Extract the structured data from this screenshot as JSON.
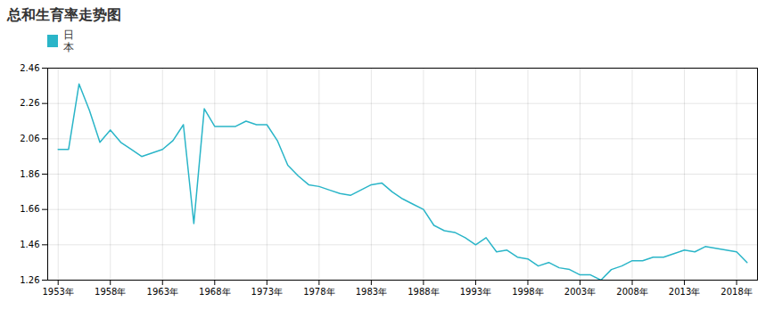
{
  "chart_data": {
    "type": "line",
    "title": "总和生育率走势图",
    "x": [
      1953,
      1954,
      1955,
      1956,
      1957,
      1958,
      1959,
      1960,
      1961,
      1962,
      1963,
      1964,
      1965,
      1966,
      1967,
      1968,
      1969,
      1970,
      1971,
      1972,
      1973,
      1974,
      1975,
      1976,
      1977,
      1978,
      1979,
      1980,
      1981,
      1982,
      1983,
      1984,
      1985,
      1986,
      1987,
      1988,
      1989,
      1990,
      1991,
      1992,
      1993,
      1994,
      1995,
      1996,
      1997,
      1998,
      1999,
      2000,
      2001,
      2002,
      2003,
      2004,
      2005,
      2006,
      2007,
      2008,
      2009,
      2010,
      2011,
      2012,
      2013,
      2014,
      2015,
      2016,
      2017,
      2018,
      2019
    ],
    "series": [
      {
        "name": "日\n本",
        "color": "#2ab5c8",
        "values": [
          2.0,
          2.0,
          2.37,
          2.22,
          2.04,
          2.11,
          2.04,
          2.0,
          1.96,
          1.98,
          2.0,
          2.05,
          2.14,
          1.58,
          2.23,
          2.13,
          2.13,
          2.13,
          2.16,
          2.14,
          2.14,
          2.05,
          1.91,
          1.85,
          1.8,
          1.79,
          1.77,
          1.75,
          1.74,
          1.77,
          1.8,
          1.81,
          1.76,
          1.72,
          1.69,
          1.66,
          1.57,
          1.54,
          1.53,
          1.5,
          1.46,
          1.5,
          1.42,
          1.43,
          1.39,
          1.38,
          1.34,
          1.36,
          1.33,
          1.32,
          1.29,
          1.29,
          1.26,
          1.32,
          1.34,
          1.37,
          1.37,
          1.39,
          1.39,
          1.41,
          1.43,
          1.42,
          1.45,
          1.44,
          1.43,
          1.42,
          1.36
        ]
      }
    ],
    "xlim": [
      1952,
      2020
    ],
    "xticks": [
      {
        "value": 1953,
        "label": "1953年"
      },
      {
        "value": 1958,
        "label": "1958年"
      },
      {
        "value": 1963,
        "label": "1963年"
      },
      {
        "value": 1968,
        "label": "1968年"
      },
      {
        "value": 1973,
        "label": "1973年"
      },
      {
        "value": 1978,
        "label": "1978年"
      },
      {
        "value": 1983,
        "label": "1983年"
      },
      {
        "value": 1988,
        "label": "1988年"
      },
      {
        "value": 1993,
        "label": "1993年"
      },
      {
        "value": 1998,
        "label": "1998年"
      },
      {
        "value": 2003,
        "label": "2003年"
      },
      {
        "value": 2008,
        "label": "2008年"
      },
      {
        "value": 2013,
        "label": "2013年"
      },
      {
        "value": 2018,
        "label": "2018年"
      }
    ],
    "ylim": [
      1.26,
      2.46
    ],
    "yticks": [
      1.26,
      1.46,
      1.66,
      1.86,
      2.06,
      2.26,
      2.46
    ],
    "grid": true,
    "legend": "upper left"
  }
}
